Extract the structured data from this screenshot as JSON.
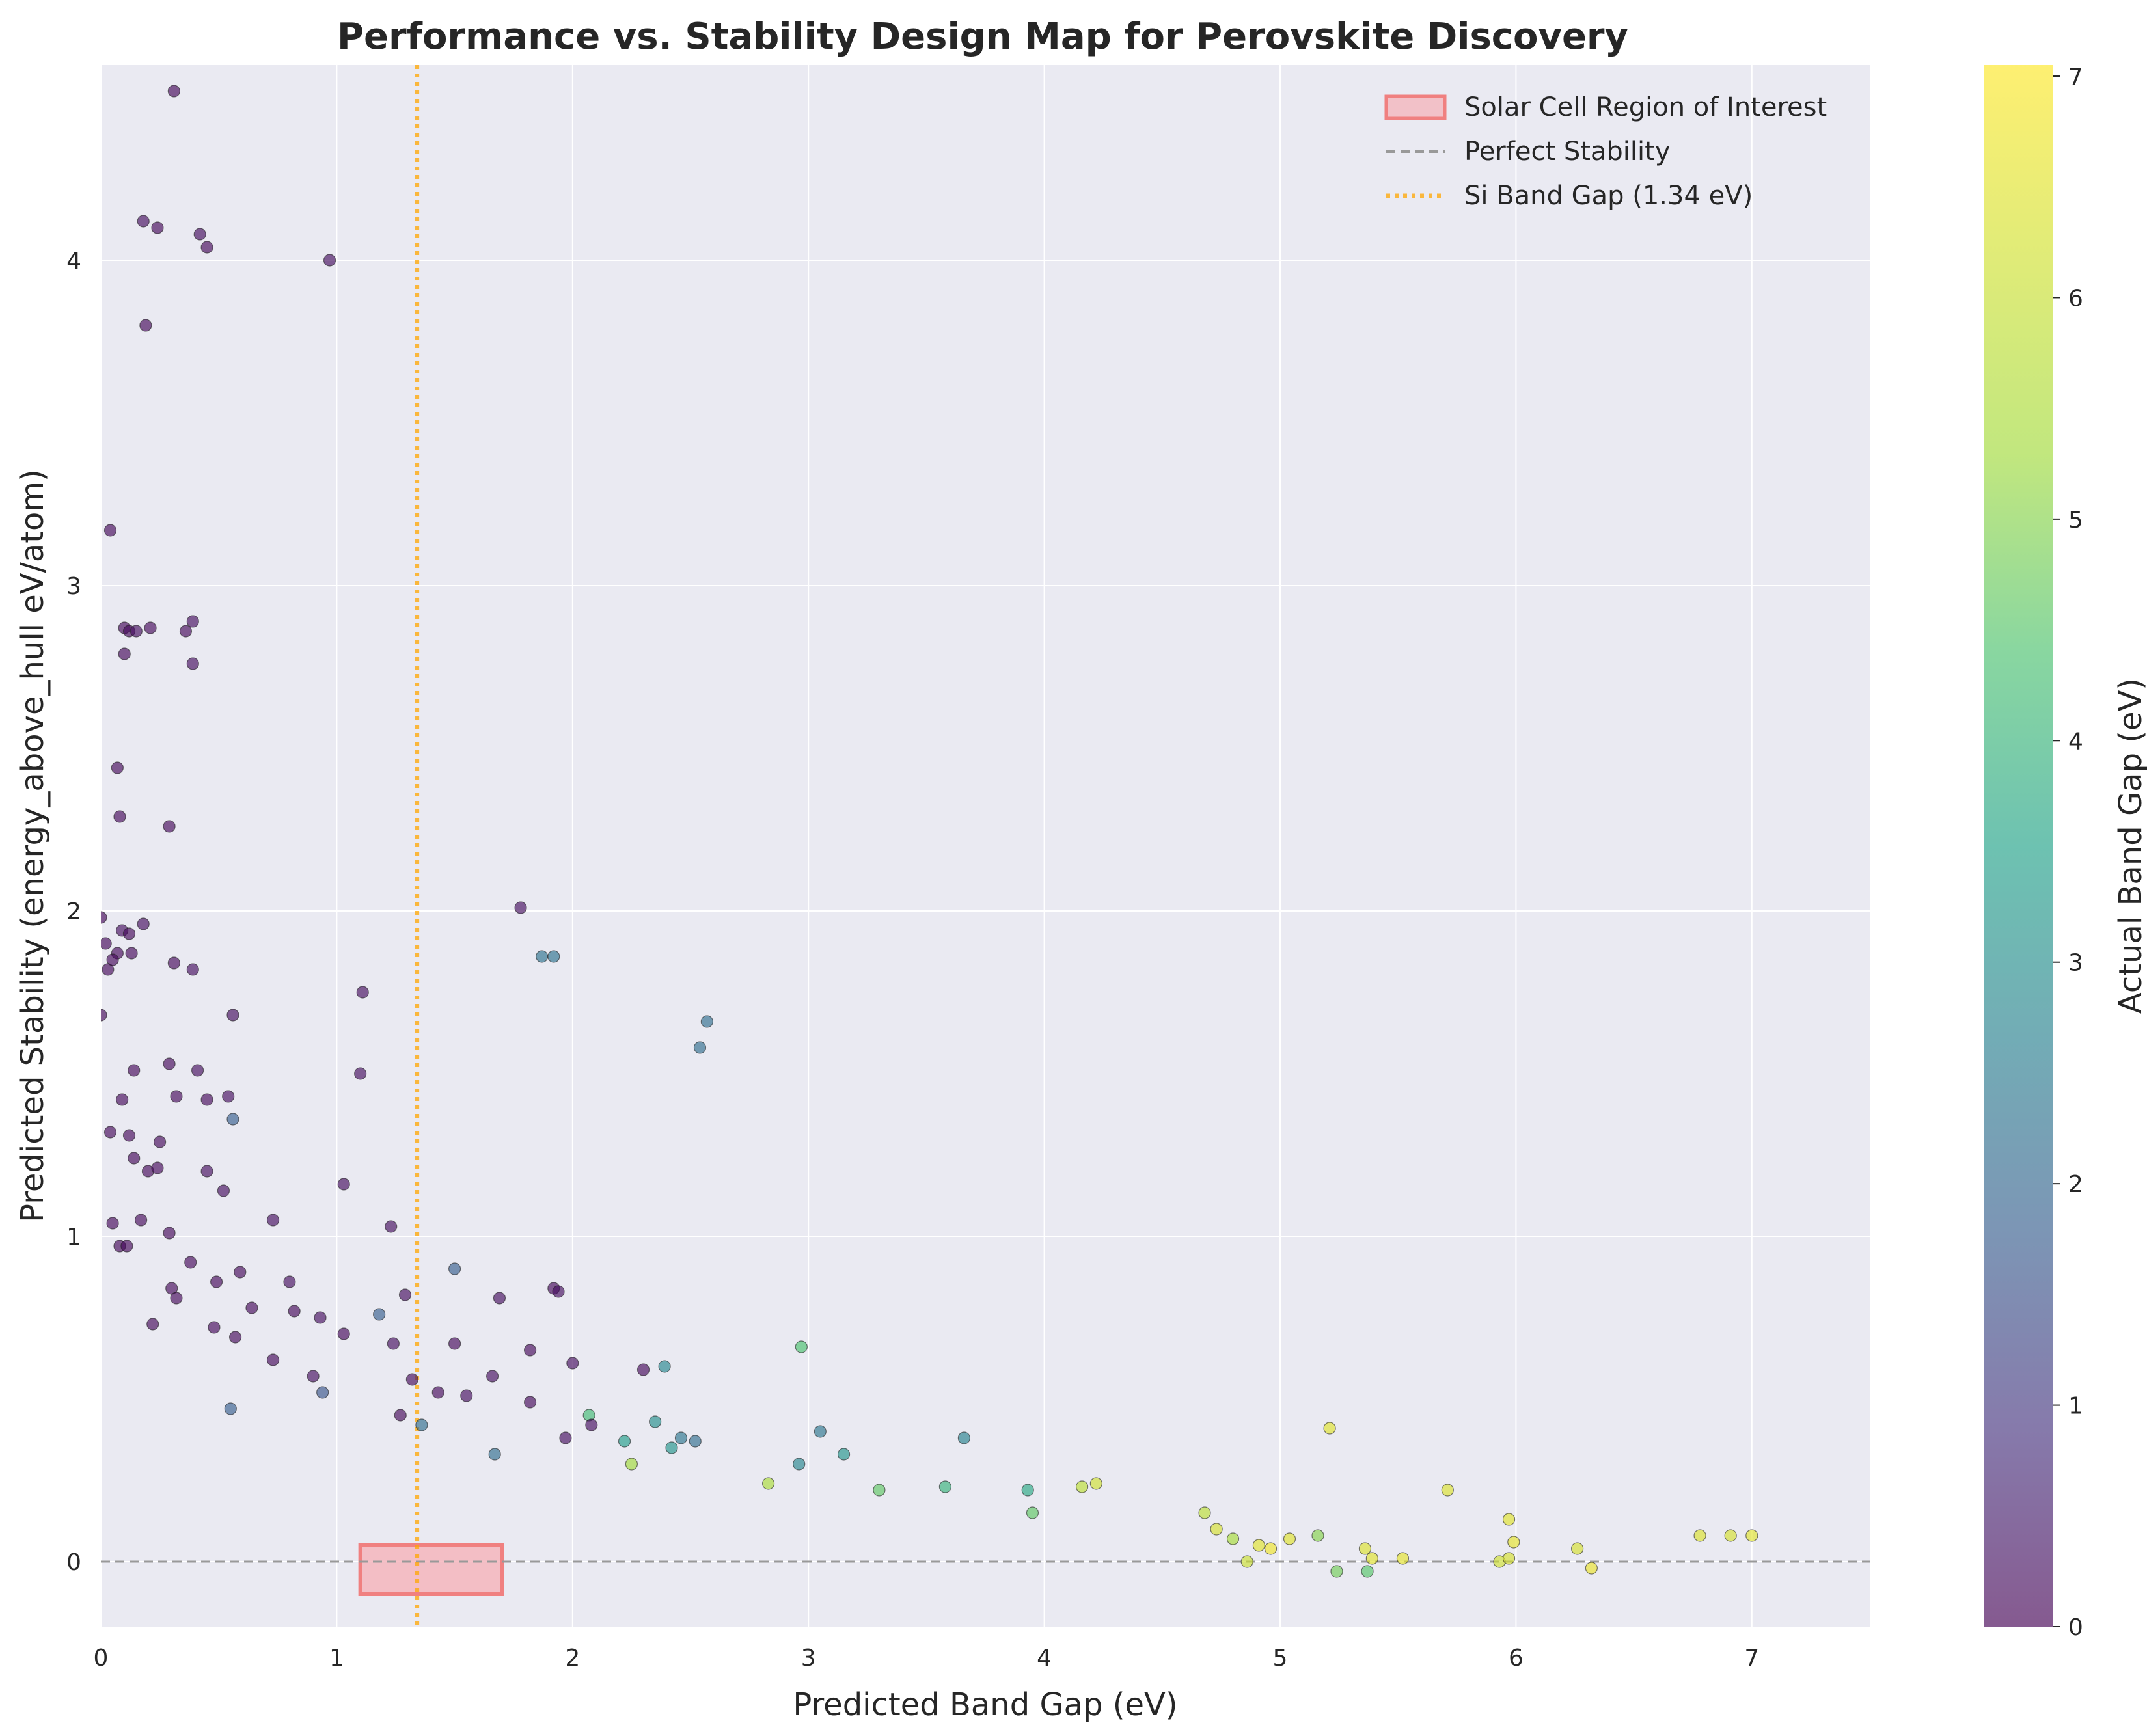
{
  "chart_data": {
    "type": "scatter",
    "title": "Performance vs. Stability Design Map for Perovskite Discovery",
    "xlabel": "Predicted Band Gap (eV)",
    "ylabel": "Predicted Stability (energy_above_hull eV/atom)",
    "xlim": [
      0,
      7.5
    ],
    "ylim": [
      -0.2,
      4.6
    ],
    "xticks": [
      0,
      1,
      2,
      3,
      4,
      5,
      6,
      7
    ],
    "yticks": [
      0,
      1,
      2,
      3,
      4
    ],
    "grid": true,
    "legend_position": "top-right",
    "legend": [
      {
        "label": "Solar Cell Region of Interest",
        "kind": "patch",
        "color": "#f08080"
      },
      {
        "label": "Perfect Stability",
        "kind": "dashed-line",
        "color": "#999999"
      },
      {
        "label": "Si Band Gap (1.34 eV)",
        "kind": "dotted-line",
        "color": "#ffa500"
      }
    ],
    "reference_lines": {
      "perfect_stability_y": 0,
      "si_band_gap_x": 1.34
    },
    "region_of_interest": {
      "x": [
        1.1,
        1.7
      ],
      "y": [
        -0.1,
        0.05
      ],
      "color": "#f08080"
    },
    "colorbar": {
      "label": "Actual Band Gap (eV)",
      "range": [
        0,
        7.05
      ],
      "ticks": [
        0,
        1,
        2,
        3,
        4,
        5,
        6,
        7
      ],
      "colormap": "viridis"
    },
    "points": [
      [
        0.31,
        4.52,
        0.1
      ],
      [
        0.18,
        4.12,
        0.2
      ],
      [
        0.24,
        4.1,
        0.1
      ],
      [
        0.42,
        4.08,
        0.2
      ],
      [
        0.45,
        4.04,
        0.1
      ],
      [
        0.97,
        4.0,
        0.2
      ],
      [
        0.19,
        3.8,
        0.1
      ],
      [
        0.04,
        3.17,
        0.1
      ],
      [
        0.39,
        2.89,
        0.2
      ],
      [
        0.36,
        2.86,
        0.1
      ],
      [
        0.1,
        2.87,
        0.1
      ],
      [
        0.12,
        2.86,
        0.1
      ],
      [
        0.21,
        2.87,
        0.1
      ],
      [
        0.15,
        2.86,
        0.2
      ],
      [
        0.1,
        2.79,
        0.1
      ],
      [
        0.39,
        2.76,
        0.2
      ],
      [
        0.07,
        2.44,
        0.1
      ],
      [
        0.08,
        2.29,
        0.1
      ],
      [
        0.29,
        2.26,
        0.1
      ],
      [
        0.0,
        1.98,
        0.1
      ],
      [
        0.02,
        1.9,
        0.1
      ],
      [
        0.07,
        1.87,
        0.1
      ],
      [
        0.09,
        1.94,
        0.2
      ],
      [
        0.12,
        1.93,
        0.1
      ],
      [
        0.18,
        1.96,
        0.2
      ],
      [
        0.13,
        1.87,
        0.1
      ],
      [
        0.03,
        1.82,
        0.1
      ],
      [
        0.05,
        1.85,
        0.1
      ],
      [
        0.31,
        1.84,
        0.1
      ],
      [
        0.39,
        1.82,
        0.2
      ],
      [
        1.78,
        2.01,
        0.2
      ],
      [
        1.87,
        1.86,
        2.3
      ],
      [
        1.92,
        1.86,
        2.3
      ],
      [
        0.0,
        1.68,
        0.1
      ],
      [
        0.56,
        1.68,
        0.2
      ],
      [
        1.11,
        1.75,
        0.2
      ],
      [
        2.57,
        1.66,
        2.2
      ],
      [
        2.54,
        1.58,
        2.2
      ],
      [
        0.29,
        1.53,
        0.1
      ],
      [
        0.41,
        1.51,
        0.2
      ],
      [
        0.14,
        1.51,
        0.1
      ],
      [
        1.1,
        1.5,
        0.2
      ],
      [
        0.09,
        1.42,
        0.1
      ],
      [
        0.32,
        1.43,
        0.1
      ],
      [
        0.45,
        1.42,
        0.1
      ],
      [
        0.54,
        1.43,
        0.2
      ],
      [
        0.56,
        1.36,
        1.8
      ],
      [
        0.04,
        1.32,
        0.1
      ],
      [
        0.12,
        1.31,
        0.1
      ],
      [
        0.25,
        1.29,
        0.1
      ],
      [
        0.14,
        1.24,
        0.1
      ],
      [
        0.2,
        1.2,
        0.1
      ],
      [
        0.24,
        1.21,
        0.1
      ],
      [
        0.45,
        1.2,
        0.2
      ],
      [
        0.52,
        1.14,
        0.2
      ],
      [
        1.03,
        1.16,
        0.2
      ],
      [
        0.17,
        1.05,
        0.1
      ],
      [
        0.05,
        1.04,
        0.1
      ],
      [
        0.29,
        1.01,
        0.1
      ],
      [
        0.73,
        1.05,
        0.2
      ],
      [
        0.08,
        0.97,
        0.1
      ],
      [
        0.11,
        0.97,
        0.1
      ],
      [
        0.38,
        0.92,
        0.1
      ],
      [
        1.23,
        1.03,
        0.2
      ],
      [
        0.59,
        0.89,
        0.1
      ],
      [
        0.49,
        0.86,
        0.1
      ],
      [
        0.8,
        0.86,
        0.2
      ],
      [
        1.5,
        0.9,
        1.8
      ],
      [
        0.3,
        0.84,
        0.1
      ],
      [
        0.32,
        0.81,
        0.1
      ],
      [
        1.92,
        0.84,
        0.1
      ],
      [
        1.94,
        0.83,
        0.2
      ],
      [
        1.69,
        0.81,
        0.2
      ],
      [
        1.29,
        0.82,
        0.2
      ],
      [
        0.64,
        0.78,
        0.1
      ],
      [
        0.82,
        0.77,
        0.1
      ],
      [
        0.93,
        0.75,
        0.2
      ],
      [
        1.18,
        0.76,
        1.8
      ],
      [
        0.22,
        0.73,
        0.1
      ],
      [
        0.48,
        0.72,
        0.1
      ],
      [
        1.03,
        0.7,
        0.1
      ],
      [
        0.57,
        0.69,
        0.1
      ],
      [
        1.5,
        0.67,
        0.1
      ],
      [
        1.24,
        0.67,
        0.2
      ],
      [
        1.82,
        0.65,
        0.1
      ],
      [
        2.97,
        0.66,
        4.4
      ],
      [
        0.73,
        0.62,
        0.1
      ],
      [
        2.0,
        0.61,
        0.2
      ],
      [
        2.39,
        0.6,
        2.8
      ],
      [
        2.3,
        0.59,
        0.1
      ],
      [
        0.9,
        0.57,
        0.2
      ],
      [
        1.66,
        0.57,
        0.2
      ],
      [
        1.32,
        0.56,
        0.1
      ],
      [
        1.43,
        0.52,
        0.1
      ],
      [
        0.94,
        0.52,
        1.6
      ],
      [
        1.55,
        0.51,
        0.2
      ],
      [
        1.82,
        0.49,
        0.1
      ],
      [
        2.07,
        0.45,
        4.2
      ],
      [
        0.55,
        0.47,
        1.8
      ],
      [
        1.27,
        0.45,
        0.1
      ],
      [
        2.35,
        0.43,
        3.0
      ],
      [
        2.08,
        0.42,
        0.2
      ],
      [
        3.05,
        0.4,
        2.4
      ],
      [
        1.36,
        0.42,
        2.2
      ],
      [
        2.46,
        0.38,
        2.4
      ],
      [
        3.66,
        0.38,
        2.7
      ],
      [
        2.52,
        0.37,
        2.2
      ],
      [
        5.21,
        0.41,
        6.5
      ],
      [
        1.97,
        0.38,
        0.2
      ],
      [
        2.22,
        0.37,
        3.4
      ],
      [
        3.15,
        0.33,
        3.2
      ],
      [
        2.96,
        0.3,
        2.8
      ],
      [
        2.42,
        0.35,
        3.2
      ],
      [
        1.67,
        0.33,
        2.2
      ],
      [
        2.25,
        0.3,
        5.3
      ],
      [
        5.71,
        0.22,
        6.4
      ],
      [
        4.16,
        0.23,
        5.8
      ],
      [
        4.22,
        0.24,
        6.2
      ],
      [
        3.93,
        0.22,
        3.7
      ],
      [
        3.3,
        0.22,
        4.6
      ],
      [
        3.58,
        0.23,
        4.0
      ],
      [
        2.83,
        0.24,
        5.5
      ],
      [
        3.95,
        0.15,
        4.6
      ],
      [
        4.68,
        0.15,
        5.8
      ],
      [
        5.97,
        0.13,
        6.5
      ],
      [
        5.16,
        0.08,
        5.0
      ],
      [
        5.04,
        0.07,
        6.5
      ],
      [
        6.78,
        0.08,
        6.4
      ],
      [
        6.91,
        0.08,
        6.3
      ],
      [
        7.0,
        0.08,
        6.5
      ],
      [
        5.99,
        0.06,
        6.6
      ],
      [
        6.26,
        0.04,
        6.3
      ],
      [
        5.36,
        0.04,
        6.4
      ],
      [
        5.52,
        0.01,
        6.6
      ],
      [
        5.39,
        0.01,
        6.5
      ],
      [
        5.93,
        0.0,
        6.2
      ],
      [
        6.32,
        -0.02,
        6.7
      ],
      [
        5.97,
        0.01,
        6.3
      ],
      [
        5.24,
        -0.03,
        4.8
      ],
      [
        5.37,
        -0.03,
        4.5
      ],
      [
        4.91,
        0.05,
        6.5
      ],
      [
        4.96,
        0.04,
        6.8
      ],
      [
        4.86,
        0.0,
        6.1
      ],
      [
        4.8,
        0.07,
        5.4
      ],
      [
        4.73,
        0.1,
        6.3
      ]
    ]
  }
}
